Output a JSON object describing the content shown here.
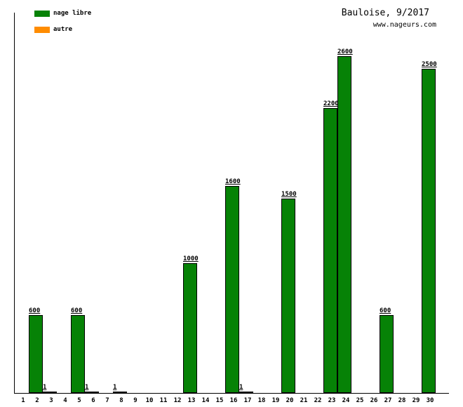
{
  "chart_data": {
    "type": "bar",
    "title": "Bauloise, 9/2017",
    "watermark": "www.nageurs.com",
    "xlabel": "",
    "ylabel": "",
    "ylim": [
      0,
      2935
    ],
    "grid": false,
    "legend_position": "top-left",
    "categories": [
      1,
      2,
      3,
      4,
      5,
      6,
      7,
      8,
      9,
      10,
      11,
      12,
      13,
      14,
      15,
      16,
      17,
      18,
      19,
      20,
      21,
      22,
      23,
      24,
      25,
      26,
      27,
      28,
      29,
      30
    ],
    "series": [
      {
        "name": "nage libre",
        "color": "#068206",
        "values": [
          0,
          600,
          1,
          0,
          600,
          1,
          0,
          0,
          0,
          0,
          0,
          0,
          1000,
          0,
          0,
          1600,
          1,
          0,
          0,
          1500,
          0,
          0,
          2200,
          2600,
          0,
          0,
          600,
          0,
          0,
          2500
        ]
      },
      {
        "name": "autre",
        "color": "#FF8C00",
        "values": [
          0,
          0,
          0,
          0,
          0,
          0,
          0,
          1,
          0,
          0,
          0,
          0,
          0,
          0,
          0,
          0,
          0,
          0,
          0,
          0,
          0,
          0,
          0,
          0,
          0,
          0,
          0,
          0,
          0,
          0
        ]
      }
    ],
    "bar_label_color": "#000000",
    "axis_color": "#000000",
    "background_color": "#ffffff"
  }
}
